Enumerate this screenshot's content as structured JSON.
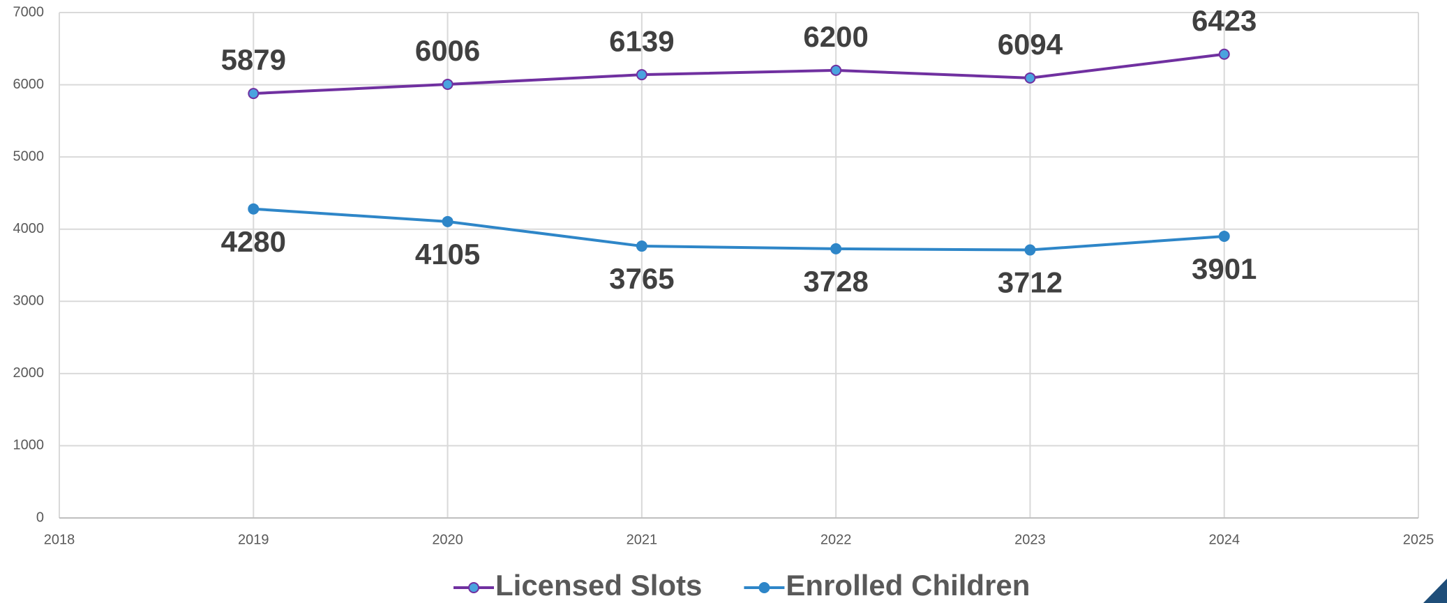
{
  "chart_data": {
    "type": "line",
    "x": [
      2019,
      2020,
      2021,
      2022,
      2023,
      2024
    ],
    "xlim": [
      2018,
      2025
    ],
    "xticks": [
      2018,
      2019,
      2020,
      2021,
      2022,
      2023,
      2024,
      2025
    ],
    "ylim": [
      0,
      7000
    ],
    "yticks": [
      0,
      1000,
      2000,
      3000,
      4000,
      5000,
      6000,
      7000
    ],
    "grid": true,
    "legend": "bottom",
    "series": [
      {
        "name": "Licensed Slots",
        "color": "#7030a0",
        "marker_color": "#4aa3df",
        "label_position": "above",
        "values": [
          5879,
          6006,
          6139,
          6200,
          6094,
          6423
        ]
      },
      {
        "name": "Enrolled Children",
        "color": "#2e86c8",
        "marker_color": "#2e86c8",
        "label_position": "below",
        "values": [
          4280,
          4105,
          3765,
          3728,
          3712,
          3901
        ]
      }
    ]
  }
}
